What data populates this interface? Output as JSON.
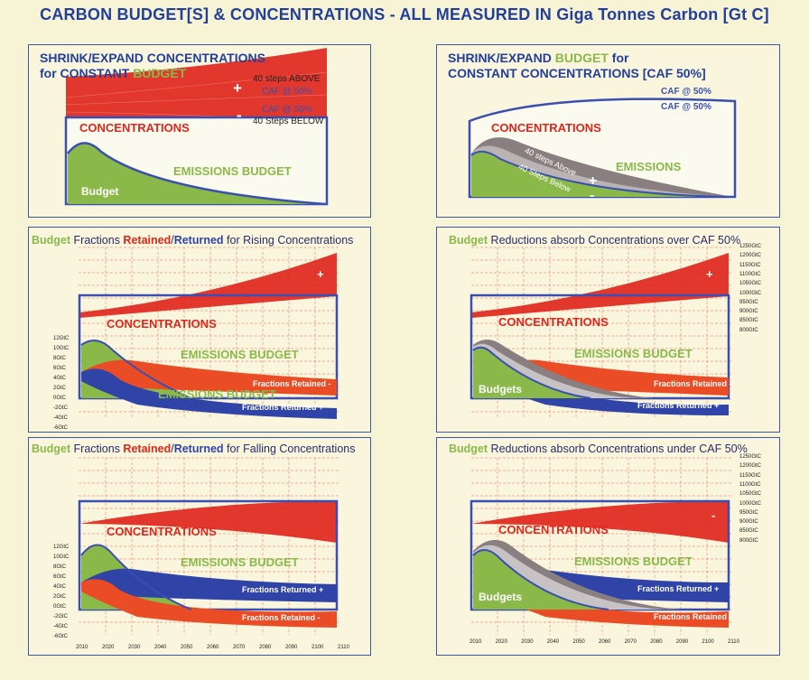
{
  "page_title": "CARBON BUDGET[S] & CONCENTRATIONS - ALL MEASURED IN Giga Tonnes Carbon [Gt C]",
  "panel_a": {
    "title_line1": "SHRINK/EXPAND CONCENTRATIONS",
    "title_line2_prefix": "for CONSTANT ",
    "title_line2_green": "BUDGET",
    "steps_above": "40 steps ABOVE",
    "caf_label_1": "CAF @ 50%",
    "caf_label_2": "CAF @ 50%",
    "steps_below": "40 Steps BELOW",
    "plus": "+",
    "minus": "-",
    "concentrations": "CONCENTRATIONS",
    "emissions_budget": "EMISSIONS BUDGET",
    "budget": "Budget"
  },
  "panel_b": {
    "title_line1_prefix": "SHRINK/EXPAND ",
    "title_line1_green": "BUDGET",
    "title_line1_suffix": " for",
    "title_line2": "CONSTANT CONCENTRATIONS [CAF 50%]",
    "caf_label_1": "CAF @ 50%",
    "caf_label_2": "CAF @ 50%",
    "concentrations": "CONCENTRATIONS",
    "emissions": "EMISSIONS",
    "steps_above": "40 steps Above",
    "steps_below": "40 Steps Below",
    "plus": "+",
    "minus": "-"
  },
  "panel_c": {
    "sub_green": "Budget",
    "sub_1": " Fractions ",
    "sub_red": "Retained",
    "sub_slash": "/",
    "sub_blue": "Returned",
    "sub_2": " for Rising Concentrations",
    "concentrations": "CONCENTRATIONS",
    "emissions_budget_1": "EMISSIONS BUDGET",
    "emissions_budget_2": "EMISSIONS BUDGET",
    "fractions_retained": "Fractions Retained -",
    "fractions_returned": "Fractions Returned +",
    "plus": "+",
    "y_ticks": [
      "12GtC",
      "10GtC",
      "8GtC",
      "6GtC",
      "4GtC",
      "2GtC",
      "0GtC",
      "-2GtC",
      "-4GtC",
      "-6GtC"
    ]
  },
  "panel_d": {
    "sub_green": "Budget",
    "sub_1": " Fractions ",
    "sub_red": "Retained",
    "sub_slash": "/",
    "sub_blue": "Returned",
    "sub_2": " for Falling Concentrations",
    "concentrations": "CONCENTRATIONS",
    "emissions_budget": "EMISSIONS BUDGET",
    "fractions_returned": "Fractions Returned +",
    "fractions_retained": "Fractions Retained -",
    "y_ticks": [
      "12GtC",
      "10GtC",
      "8GtC",
      "6GtC",
      "4GtC",
      "2GtC",
      "0GtC",
      "-2GtC",
      "-4GtC",
      "-6GtC"
    ],
    "x_ticks": [
      "2010",
      "2020",
      "2030",
      "2040",
      "2050",
      "2060",
      "2070",
      "2080",
      "2090",
      "2100",
      "2110"
    ]
  },
  "panel_e": {
    "sub_green": "Budget",
    "sub_1": " Reductions absorb Concentrations over CAF 50%",
    "concentrations": "CONCENTRATIONS",
    "emissions_budget": "EMISSIONS BUDGET",
    "budgets": "Budgets",
    "fractions_retained": "Fractions Retained -",
    "fractions_returned": "Fractions Returned +",
    "plus": "+",
    "right_ticks": [
      "1250GtC",
      "1200GtC",
      "1150GtC",
      "1100GtC",
      "1050GtC",
      "1000GtC",
      "950GtC",
      "900GtC",
      "850GtC",
      "800GtC"
    ]
  },
  "panel_f": {
    "sub_green": "Budget",
    "sub_1": " Reductions absorb Concentrations under CAF 50%",
    "concentrations": "CONCENTRATIONS",
    "emissions_budget": "EMISSIONS BUDGET",
    "budgets": "Budgets",
    "fractions_returned": "Fractions Returned +",
    "fractions_retained": "Fractions Retained -",
    "minus": "-",
    "right_ticks": [
      "1250GtC",
      "1200GtC",
      "1150GtC",
      "1100GtC",
      "1050GtC",
      "1000GtC",
      "950GtC",
      "900GtC",
      "850GtC",
      "800GtC"
    ],
    "x_ticks": [
      "2010",
      "2020",
      "2030",
      "2040",
      "2050",
      "2060",
      "2070",
      "2080",
      "2090",
      "2100",
      "2110"
    ]
  },
  "colors": {
    "background": "#f7f4d6",
    "title_blue": "#233f9a",
    "concentration_red": "#e0261c",
    "retained_orange": "#ea4d25",
    "returned_blue": "#2f44a6",
    "budget_green": "#8ab94a",
    "steps_grey": "#8a7f80"
  }
}
